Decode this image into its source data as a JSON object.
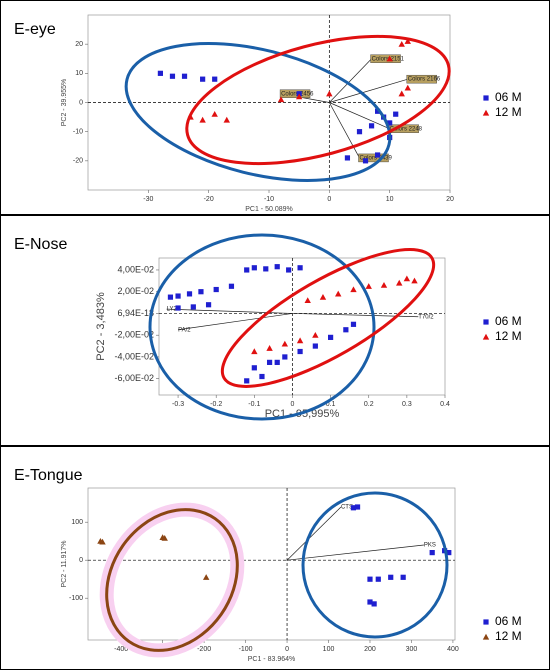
{
  "chart_data": [
    {
      "type": "scatter",
      "title": "E-eye",
      "x_label": "PC1 - 50.089%",
      "y_label": "PC2 - 39.955%",
      "xlim": [
        -40,
        20
      ],
      "xticks": [
        -30,
        -20,
        -10,
        0,
        10,
        20
      ],
      "ylim": [
        -30,
        30
      ],
      "yticks": [
        -20,
        -10,
        0,
        10,
        20
      ],
      "series": [
        {
          "name": "06 M",
          "color": "#1f1fd0",
          "marker": "square",
          "x": [
            -28,
            -26,
            -24,
            -21,
            -19,
            -5,
            8,
            9,
            7,
            5,
            10,
            8,
            6,
            3,
            10,
            11
          ],
          "values": [
            10,
            9,
            9,
            8,
            8,
            3,
            -3,
            -5,
            -8,
            -10,
            -12,
            -18,
            -20,
            -19,
            -7,
            -4
          ]
        },
        {
          "name": "12 M",
          "color": "#e01010",
          "marker": "triangle",
          "x": [
            -23,
            -21,
            -19,
            -17,
            -8,
            -5,
            0,
            12,
            13,
            12,
            13,
            10
          ],
          "values": [
            -5,
            -6,
            -4,
            -6,
            1,
            2,
            3,
            3,
            5,
            20,
            21,
            15
          ]
        }
      ],
      "annotations": [
        {
          "text": "Colors 2456",
          "x": -8,
          "y": 3
        },
        {
          "text": "Colors 2439",
          "x": 5,
          "y": -19
        },
        {
          "text": "Colors 2166",
          "x": 13,
          "y": 8
        },
        {
          "text": "Colors 2151",
          "x": 7,
          "y": 15
        },
        {
          "text": "Colors 2248",
          "x": 10,
          "y": -9
        }
      ]
    },
    {
      "type": "scatter",
      "title": "E-Nose",
      "x_label": "PC1 - 95,995%",
      "y_label": "PC2 - 3,483%",
      "xlim": [
        -0.35,
        0.4
      ],
      "xticks": [
        -0.3,
        -0.2,
        -0.1,
        0,
        0.1,
        0.2,
        0.3,
        0.4
      ],
      "ylim": [
        -0.075,
        0.051
      ],
      "yticks": [
        {
          "value": -0.06,
          "label": "-6,00E-02"
        },
        {
          "value": -0.04,
          "label": "-4,00E-02"
        },
        {
          "value": -0.02,
          "label": "-2,00E-02"
        },
        {
          "value": 6.94e-18,
          "label": "6,94E-18"
        },
        {
          "value": 0.02,
          "label": "2,00E-02"
        },
        {
          "value": 0.04,
          "label": "4,00E-02"
        }
      ],
      "series": [
        {
          "name": "06 M",
          "color": "#1f1fd0",
          "marker": "square",
          "x": [
            -0.32,
            -0.3,
            -0.27,
            -0.24,
            -0.2,
            -0.16,
            -0.12,
            -0.1,
            -0.07,
            -0.04,
            -0.01,
            0.02,
            -0.3,
            -0.26,
            -0.22,
            -0.1,
            -0.06,
            -0.02,
            0.02,
            0.06,
            0.1,
            0.14,
            0.16,
            -0.12,
            -0.08,
            -0.04
          ],
          "values": [
            0.015,
            0.016,
            0.018,
            0.02,
            0.022,
            0.025,
            0.04,
            0.042,
            0.041,
            0.043,
            0.04,
            0.042,
            0.005,
            0.006,
            0.008,
            -0.05,
            -0.045,
            -0.04,
            -0.035,
            -0.03,
            -0.022,
            -0.015,
            -0.01,
            -0.062,
            -0.058,
            -0.045
          ]
        },
        {
          "name": "12 M",
          "color": "#e01010",
          "marker": "triangle",
          "x": [
            0.04,
            0.08,
            0.12,
            0.16,
            0.2,
            0.24,
            0.28,
            0.3,
            0.32,
            -0.1,
            -0.06,
            -0.02,
            0.02,
            0.06
          ],
          "values": [
            0.012,
            0.015,
            0.018,
            0.022,
            0.025,
            0.026,
            0.028,
            0.032,
            0.03,
            -0.035,
            -0.032,
            -0.028,
            -0.025,
            -0.02
          ]
        }
      ],
      "annotations": [
        {
          "text": "PA/2",
          "x": -0.3,
          "y": -0.015
        },
        {
          "text": "LY2",
          "x": -0.33,
          "y": 0.004
        },
        {
          "text": "T70/2",
          "x": 0.33,
          "y": -0.003
        }
      ]
    },
    {
      "type": "scatter",
      "title": "E-Tongue",
      "x_label": "PC1 - 83.964%",
      "y_label": "PC2 - 11.917%",
      "xlim": [
        -480,
        405
      ],
      "xticks": [
        -400,
        -300,
        -200,
        -100,
        0,
        100,
        200,
        300,
        400
      ],
      "ylim": [
        -210,
        190
      ],
      "yticks": [
        -100,
        0,
        100
      ],
      "series": [
        {
          "name": "06 M",
          "color": "#1f1fd0",
          "marker": "square",
          "x": [
            160,
            170,
            350,
            380,
            390,
            200,
            220,
            250,
            280,
            200,
            210
          ],
          "values": [
            138,
            140,
            20,
            25,
            20,
            -50,
            -50,
            -45,
            -45,
            -110,
            -115
          ]
        },
        {
          "name": "12 M",
          "color": "#8b4513",
          "marker": "triangle",
          "x": [
            -450,
            -445,
            -300,
            -295,
            -195,
            -180,
            -175
          ],
          "values": [
            50,
            48,
            60,
            58,
            -45,
            -170,
            -165
          ]
        }
      ],
      "annotations": [
        {
          "text": "CTS",
          "x": 130,
          "y": 140
        },
        {
          "text": "PKS",
          "x": 330,
          "y": 40
        }
      ]
    }
  ]
}
